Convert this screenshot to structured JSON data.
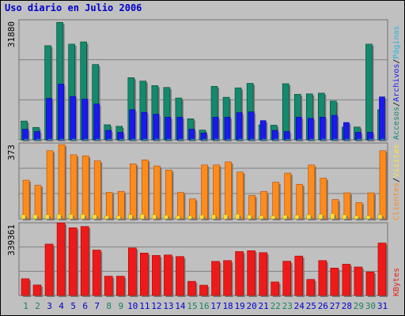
{
  "title": "Uso diario en Julio 2006",
  "colors": {
    "accesos": "#138a6e",
    "archivos": "#1a1aee",
    "paginas": "#28b4e0",
    "clientes": "#ff8c1a",
    "visitas": "#ffe040",
    "kbytes": "#ee1a1a",
    "day_weekday": "#0000cc",
    "day_weekend": "#16865a"
  },
  "chart_data": [
    {
      "type": "bar",
      "name": "accesos-archivos-paginas",
      "ymax_label": "31880",
      "ymax": 31880,
      "right_labels": [
        "Accesos",
        "/",
        "Archivos",
        "/",
        "Páginas"
      ],
      "categories": [
        "1",
        "2",
        "3",
        "4",
        "5",
        "6",
        "7",
        "8",
        "9",
        "10",
        "11",
        "12",
        "13",
        "14",
        "15",
        "16",
        "17",
        "18",
        "19",
        "20",
        "21",
        "22",
        "23",
        "24",
        "25",
        "26",
        "27",
        "28",
        "29",
        "30",
        "31"
      ],
      "series": [
        {
          "name": "Accesos",
          "values": [
            5000,
            3300,
            25000,
            31200,
            25400,
            26000,
            20000,
            4000,
            3600,
            16500,
            15600,
            14400,
            13900,
            11100,
            5600,
            2600,
            14200,
            11300,
            13800,
            15000,
            4000,
            3900,
            14900,
            12100,
            12200,
            12400,
            10300,
            3400,
            3400,
            25400,
            8000
          ]
        },
        {
          "name": "Archivos",
          "values": [
            2800,
            2200,
            11000,
            14800,
            11500,
            10800,
            9500,
            2500,
            2000,
            8000,
            7300,
            6800,
            6000,
            6000,
            2800,
            1800,
            6000,
            6000,
            7200,
            7400,
            5100,
            2500,
            2200,
            6000,
            5700,
            6000,
            6500,
            4600,
            2000,
            2000,
            11400
          ]
        },
        {
          "name": "Páginas",
          "values": [
            100,
            100,
            100,
            100,
            100,
            100,
            100,
            100,
            100,
            100,
            100,
            100,
            100,
            100,
            100,
            100,
            100,
            100,
            100,
            100,
            100,
            100,
            100,
            100,
            100,
            100,
            100,
            100,
            100,
            100,
            100
          ]
        }
      ]
    },
    {
      "type": "bar",
      "name": "clientes-visitas",
      "ymax_label": "373",
      "ymax": 373,
      "right_labels": [
        "Clientes",
        "/",
        "Visitas"
      ],
      "categories": [
        "1",
        "2",
        "3",
        "4",
        "5",
        "6",
        "7",
        "8",
        "9",
        "10",
        "11",
        "12",
        "13",
        "14",
        "15",
        "16",
        "17",
        "18",
        "19",
        "20",
        "21",
        "22",
        "23",
        "24",
        "25",
        "26",
        "27",
        "28",
        "29",
        "30",
        "31"
      ],
      "series": [
        {
          "name": "Clientes",
          "values": [
            190,
            165,
            335,
            365,
            315,
            310,
            285,
            130,
            135,
            270,
            290,
            260,
            240,
            130,
            98,
            265,
            265,
            280,
            230,
            115,
            135,
            180,
            225,
            170,
            265,
            200,
            95,
            128,
            80,
            128,
            335
          ]
        },
        {
          "name": "Visitas",
          "values": [
            20,
            20,
            20,
            22,
            22,
            22,
            20,
            15,
            15,
            20,
            22,
            20,
            18,
            15,
            15,
            18,
            20,
            20,
            22,
            18,
            15,
            15,
            18,
            18,
            20,
            22,
            26,
            20,
            15,
            15,
            20
          ]
        }
      ]
    },
    {
      "type": "bar",
      "name": "kbytes",
      "ymax_label": "339361",
      "ymax": 339361,
      "right_labels": [
        "KBytes"
      ],
      "categories": [
        "1",
        "2",
        "3",
        "4",
        "5",
        "6",
        "7",
        "8",
        "9",
        "10",
        "11",
        "12",
        "13",
        "14",
        "15",
        "16",
        "17",
        "18",
        "19",
        "20",
        "21",
        "22",
        "23",
        "24",
        "25",
        "26",
        "27",
        "28",
        "29",
        "30",
        "31"
      ],
      "series": [
        {
          "name": "KBytes",
          "values": [
            78000,
            49000,
            240000,
            339000,
            316000,
            322000,
            212000,
            90000,
            90000,
            222000,
            198000,
            187000,
            189000,
            182000,
            66000,
            48000,
            159000,
            163000,
            205000,
            209000,
            200000,
            63000,
            160000,
            184000,
            75000,
            163000,
            128000,
            146000,
            133000,
            110000,
            245000
          ]
        }
      ]
    }
  ],
  "days": {
    "labels": [
      "1",
      "2",
      "3",
      "4",
      "5",
      "6",
      "7",
      "8",
      "9",
      "10",
      "11",
      "12",
      "13",
      "14",
      "15",
      "16",
      "17",
      "18",
      "19",
      "20",
      "21",
      "22",
      "23",
      "24",
      "25",
      "26",
      "27",
      "28",
      "29",
      "30",
      "31"
    ],
    "weekend": [
      true,
      true,
      false,
      false,
      false,
      false,
      false,
      true,
      true,
      false,
      false,
      false,
      false,
      false,
      true,
      true,
      false,
      false,
      false,
      false,
      false,
      true,
      true,
      false,
      false,
      false,
      false,
      false,
      true,
      true,
      false
    ]
  }
}
